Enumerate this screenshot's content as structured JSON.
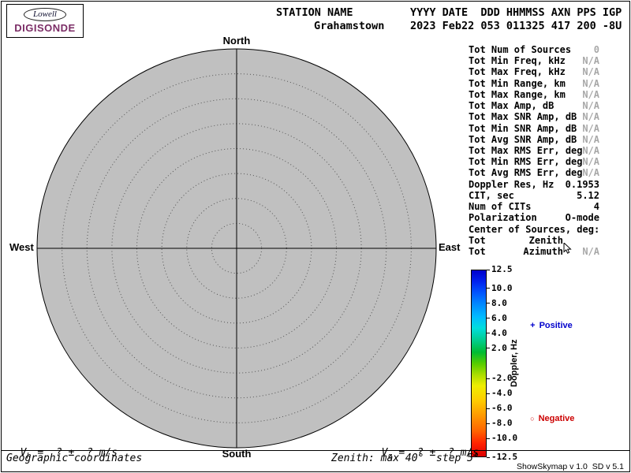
{
  "logo": {
    "brand_top": "Lowell",
    "brand_bottom": "DIGISONDE"
  },
  "header": {
    "col1_line1": "STATION NAME",
    "col1_line2": "Grahamstown",
    "col2_line1": "YYYY DATE  DDD HHMMSS AXN PPS IGP",
    "col2_line2": "2023 Feb22 053 011325 417 200 -8U"
  },
  "compass": {
    "north": "North",
    "south": "South",
    "west": "West",
    "east": "East"
  },
  "skymap": {
    "max_zenith_deg": 40,
    "step_deg": 5
  },
  "stats": {
    "rows": [
      {
        "label": "Tot Num of Sources",
        "value": "0",
        "muted": true
      },
      {
        "label": "Tot Min Freq, kHz",
        "value": "N/A",
        "muted": true
      },
      {
        "label": "Tot Max Freq, kHz",
        "value": "N/A",
        "muted": true
      },
      {
        "label": "Tot Min Range, km",
        "value": "N/A",
        "muted": true
      },
      {
        "label": "Tot Max Range, km",
        "value": "N/A",
        "muted": true
      },
      {
        "label": "Tot Max Amp, dB",
        "value": "N/A",
        "muted": true
      },
      {
        "label": "Tot Max SNR Amp, dB",
        "value": "N/A",
        "muted": true
      },
      {
        "label": "Tot Min SNR Amp, dB",
        "value": "N/A",
        "muted": true
      },
      {
        "label": "Tot Avg SNR Amp, dB",
        "value": "N/A",
        "muted": true
      },
      {
        "label": "Tot Max RMS Err, deg",
        "value": "N/A",
        "muted": true
      },
      {
        "label": "Tot Min RMS Err, deg",
        "value": "N/A",
        "muted": true
      },
      {
        "label": "Tot Avg RMS Err, deg",
        "value": "N/A",
        "muted": true
      },
      {
        "label": "Doppler Res, Hz",
        "value": "0.1953",
        "muted": false
      },
      {
        "label": "CIT, sec",
        "value": "5.12",
        "muted": false
      },
      {
        "label": "Num of CITs",
        "value": "4",
        "muted": false
      },
      {
        "label": "Polarization",
        "value": "O-mode",
        "muted": false
      },
      {
        "label": "Center of Sources, deg:",
        "value": "",
        "muted": false
      },
      {
        "label": "Tot",
        "mid": "Zenith",
        "value": "",
        "muted": true
      },
      {
        "label": "Tot",
        "mid": "Azimuth",
        "value": "N/A",
        "muted": true
      }
    ]
  },
  "colorbar": {
    "title": "Doppler, Hz",
    "max": 12.5,
    "min": -12.5,
    "ticks": [
      "12.5",
      "10.0",
      "8.0",
      "6.0",
      "4.0",
      "2.0",
      "-2.0",
      "-4.0",
      "-6.0",
      "-8.0",
      "-10.0",
      "-12.5"
    ],
    "positive_symbol": "+",
    "positive_label": "Positive",
    "positive_color": "#0000cc",
    "negative_symbol": "○",
    "negative_label": "Negative",
    "negative_color": "#cc0000"
  },
  "footer": {
    "vh_prefix": "V",
    "vh_sub": "h",
    "vh_rest": " =  ? ±  ? m/s",
    "vz_prefix": "V",
    "vz_sub": "z",
    "vz_rest": " =  ? ±  ? m/s",
    "coords": "Geographic coordinates",
    "zenith_info": "Zenith: max 40°  step 5°",
    "version": "ShowSkymap v 1.0  SD v 5.1"
  }
}
